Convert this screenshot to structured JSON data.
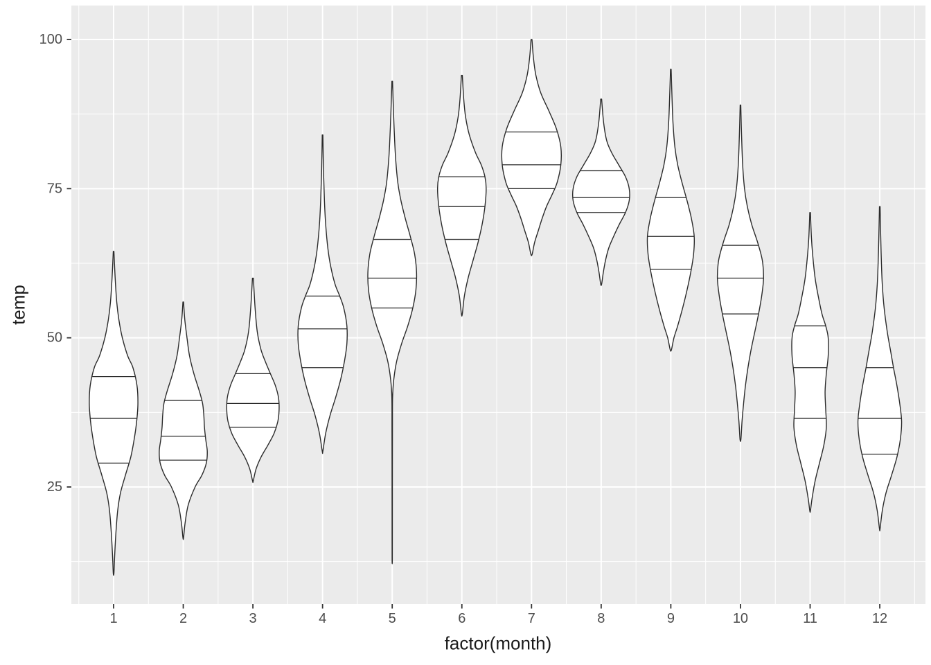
{
  "figure": {
    "background": "#FFFFFF",
    "panel_background": "#EBEBEB",
    "grid_major_color": "#FFFFFF",
    "grid_minor_color": "#FFFFFF",
    "axis_text_color": "#4D4D4D",
    "axis_title_color": "#1A1A1A",
    "tick_mark_color": "#333333",
    "violin_fill": "#FFFFFF",
    "violin_stroke": "#2B2B2B"
  },
  "chart_data": {
    "type": "violin",
    "title": "",
    "xlabel": "factor(month)",
    "ylabel": "temp",
    "legend": "none",
    "grid": "on",
    "categories": [
      "1",
      "2",
      "3",
      "4",
      "5",
      "6",
      "7",
      "8",
      "9",
      "10",
      "11",
      "12"
    ],
    "y_ticks": [
      25,
      50,
      75,
      100
    ],
    "y_minor": [
      12.5,
      37.5,
      62.5,
      87.5
    ],
    "ylim": [
      5,
      106
    ],
    "quantiles_drawn": [
      0.25,
      0.5,
      0.75
    ],
    "series": [
      {
        "month": "1",
        "min": 10.5,
        "q25": 29,
        "median": 36.5,
        "q75": 43.5,
        "max": 64.5,
        "density": [
          [
            10.5,
            0.01
          ],
          [
            13,
            0.03
          ],
          [
            17,
            0.07
          ],
          [
            21,
            0.13
          ],
          [
            24,
            0.22
          ],
          [
            27,
            0.38
          ],
          [
            30,
            0.55
          ],
          [
            33,
            0.66
          ],
          [
            36,
            0.74
          ],
          [
            39,
            0.78
          ],
          [
            42,
            0.75
          ],
          [
            45,
            0.62
          ],
          [
            47,
            0.45
          ],
          [
            50,
            0.28
          ],
          [
            53,
            0.17
          ],
          [
            56,
            0.1
          ],
          [
            60,
            0.05
          ],
          [
            64.5,
            0.01
          ]
        ]
      },
      {
        "month": "2",
        "min": 16.5,
        "q25": 29.5,
        "median": 33.5,
        "q75": 39.5,
        "max": 56,
        "density": [
          [
            16.5,
            0.01
          ],
          [
            19,
            0.06
          ],
          [
            22,
            0.16
          ],
          [
            25,
            0.38
          ],
          [
            27,
            0.6
          ],
          [
            29,
            0.74
          ],
          [
            31,
            0.77
          ],
          [
            33,
            0.72
          ],
          [
            35,
            0.68
          ],
          [
            37,
            0.66
          ],
          [
            39,
            0.62
          ],
          [
            41,
            0.52
          ],
          [
            44,
            0.34
          ],
          [
            47,
            0.2
          ],
          [
            50,
            0.12
          ],
          [
            53,
            0.05
          ],
          [
            56,
            0.01
          ]
        ]
      },
      {
        "month": "3",
        "min": 26,
        "q25": 35,
        "median": 39,
        "q75": 44,
        "max": 60,
        "density": [
          [
            26,
            0.01
          ],
          [
            28,
            0.1
          ],
          [
            30,
            0.26
          ],
          [
            32,
            0.48
          ],
          [
            34,
            0.68
          ],
          [
            36,
            0.8
          ],
          [
            38,
            0.84
          ],
          [
            40,
            0.82
          ],
          [
            42,
            0.72
          ],
          [
            44,
            0.56
          ],
          [
            46,
            0.4
          ],
          [
            48,
            0.26
          ],
          [
            51,
            0.14
          ],
          [
            55,
            0.07
          ],
          [
            60,
            0.015
          ]
        ]
      },
      {
        "month": "4",
        "min": 31,
        "q25": 45,
        "median": 51.5,
        "q75": 57,
        "max": 84,
        "density": [
          [
            31,
            0.01
          ],
          [
            34,
            0.1
          ],
          [
            37,
            0.24
          ],
          [
            40,
            0.42
          ],
          [
            43,
            0.58
          ],
          [
            46,
            0.7
          ],
          [
            49,
            0.78
          ],
          [
            52,
            0.78
          ],
          [
            55,
            0.68
          ],
          [
            57,
            0.55
          ],
          [
            59,
            0.4
          ],
          [
            62,
            0.26
          ],
          [
            65,
            0.17
          ],
          [
            69,
            0.1
          ],
          [
            73,
            0.06
          ],
          [
            78,
            0.03
          ],
          [
            84,
            0.01
          ]
        ]
      },
      {
        "month": "5",
        "min": 13,
        "q25": 55,
        "median": 60,
        "q75": 66.5,
        "max": 93,
        "density": [
          [
            13,
            0.004
          ],
          [
            20,
            0.005
          ],
          [
            28,
            0.006
          ],
          [
            35,
            0.008
          ],
          [
            40,
            0.012
          ],
          [
            43,
            0.05
          ],
          [
            46,
            0.14
          ],
          [
            49,
            0.3
          ],
          [
            52,
            0.5
          ],
          [
            55,
            0.66
          ],
          [
            58,
            0.76
          ],
          [
            61,
            0.78
          ],
          [
            64,
            0.72
          ],
          [
            67,
            0.58
          ],
          [
            70,
            0.42
          ],
          [
            73,
            0.28
          ],
          [
            76,
            0.18
          ],
          [
            80,
            0.11
          ],
          [
            84,
            0.07
          ],
          [
            88,
            0.04
          ],
          [
            93,
            0.01
          ]
        ]
      },
      {
        "month": "6",
        "min": 54,
        "q25": 66.5,
        "median": 72,
        "q75": 77,
        "max": 94,
        "density": [
          [
            54,
            0.015
          ],
          [
            57,
            0.08
          ],
          [
            60,
            0.2
          ],
          [
            63,
            0.36
          ],
          [
            66,
            0.52
          ],
          [
            69,
            0.65
          ],
          [
            72,
            0.74
          ],
          [
            75,
            0.78
          ],
          [
            77,
            0.74
          ],
          [
            79,
            0.62
          ],
          [
            81,
            0.44
          ],
          [
            84,
            0.24
          ],
          [
            87,
            0.12
          ],
          [
            90,
            0.06
          ],
          [
            94,
            0.015
          ]
        ]
      },
      {
        "month": "7",
        "min": 64,
        "q25": 75,
        "median": 79,
        "q75": 84.5,
        "max": 100,
        "density": [
          [
            64,
            0.02
          ],
          [
            66,
            0.1
          ],
          [
            68,
            0.22
          ],
          [
            70,
            0.34
          ],
          [
            72,
            0.48
          ],
          [
            74,
            0.66
          ],
          [
            76,
            0.82
          ],
          [
            79,
            0.94
          ],
          [
            82,
            0.94
          ],
          [
            85,
            0.8
          ],
          [
            88,
            0.56
          ],
          [
            91,
            0.3
          ],
          [
            94,
            0.14
          ],
          [
            97,
            0.06
          ],
          [
            100,
            0.015
          ]
        ]
      },
      {
        "month": "8",
        "min": 59,
        "q25": 71,
        "median": 73.5,
        "q75": 78,
        "max": 90,
        "density": [
          [
            59,
            0.015
          ],
          [
            61,
            0.07
          ],
          [
            63,
            0.14
          ],
          [
            65,
            0.24
          ],
          [
            67,
            0.4
          ],
          [
            69,
            0.58
          ],
          [
            71,
            0.78
          ],
          [
            73,
            0.9
          ],
          [
            75,
            0.9
          ],
          [
            77,
            0.78
          ],
          [
            79,
            0.56
          ],
          [
            81,
            0.34
          ],
          [
            83,
            0.18
          ],
          [
            86,
            0.08
          ],
          [
            90,
            0.015
          ]
        ]
      },
      {
        "month": "9",
        "min": 48,
        "q25": 61.5,
        "median": 67,
        "q75": 73.5,
        "max": 95,
        "density": [
          [
            48,
            0.02
          ],
          [
            50,
            0.1
          ],
          [
            52,
            0.22
          ],
          [
            55,
            0.38
          ],
          [
            58,
            0.52
          ],
          [
            61,
            0.64
          ],
          [
            64,
            0.73
          ],
          [
            67,
            0.75
          ],
          [
            70,
            0.66
          ],
          [
            73,
            0.52
          ],
          [
            76,
            0.36
          ],
          [
            79,
            0.22
          ],
          [
            82,
            0.13
          ],
          [
            86,
            0.07
          ],
          [
            90,
            0.04
          ],
          [
            95,
            0.01
          ]
        ]
      },
      {
        "month": "10",
        "min": 33,
        "q25": 54,
        "median": 60,
        "q75": 65.5,
        "max": 89,
        "density": [
          [
            33,
            0.015
          ],
          [
            36,
            0.05
          ],
          [
            39,
            0.1
          ],
          [
            42,
            0.16
          ],
          [
            45,
            0.24
          ],
          [
            48,
            0.34
          ],
          [
            51,
            0.46
          ],
          [
            54,
            0.58
          ],
          [
            57,
            0.68
          ],
          [
            60,
            0.74
          ],
          [
            63,
            0.7
          ],
          [
            66,
            0.55
          ],
          [
            69,
            0.36
          ],
          [
            72,
            0.22
          ],
          [
            75,
            0.13
          ],
          [
            79,
            0.07
          ],
          [
            84,
            0.035
          ],
          [
            89,
            0.01
          ]
        ]
      },
      {
        "month": "11",
        "min": 21,
        "q25": 36.5,
        "median": 45,
        "q75": 52,
        "max": 71,
        "density": [
          [
            21,
            0.01
          ],
          [
            23,
            0.06
          ],
          [
            26,
            0.16
          ],
          [
            29,
            0.3
          ],
          [
            32,
            0.44
          ],
          [
            35,
            0.52
          ],
          [
            38,
            0.5
          ],
          [
            41,
            0.48
          ],
          [
            44,
            0.52
          ],
          [
            47,
            0.58
          ],
          [
            50,
            0.58
          ],
          [
            52,
            0.5
          ],
          [
            54,
            0.38
          ],
          [
            57,
            0.26
          ],
          [
            60,
            0.16
          ],
          [
            64,
            0.08
          ],
          [
            67,
            0.04
          ],
          [
            71,
            0.01
          ]
        ]
      },
      {
        "month": "12",
        "min": 18,
        "q25": 30.5,
        "median": 36.5,
        "q75": 45,
        "max": 72,
        "density": [
          [
            18,
            0.01
          ],
          [
            21,
            0.08
          ],
          [
            24,
            0.2
          ],
          [
            27,
            0.38
          ],
          [
            30,
            0.55
          ],
          [
            33,
            0.66
          ],
          [
            36,
            0.7
          ],
          [
            39,
            0.64
          ],
          [
            42,
            0.55
          ],
          [
            45,
            0.44
          ],
          [
            48,
            0.34
          ],
          [
            51,
            0.24
          ],
          [
            55,
            0.14
          ],
          [
            59,
            0.08
          ],
          [
            63,
            0.05
          ],
          [
            67,
            0.03
          ],
          [
            72,
            0.01
          ]
        ]
      }
    ]
  }
}
